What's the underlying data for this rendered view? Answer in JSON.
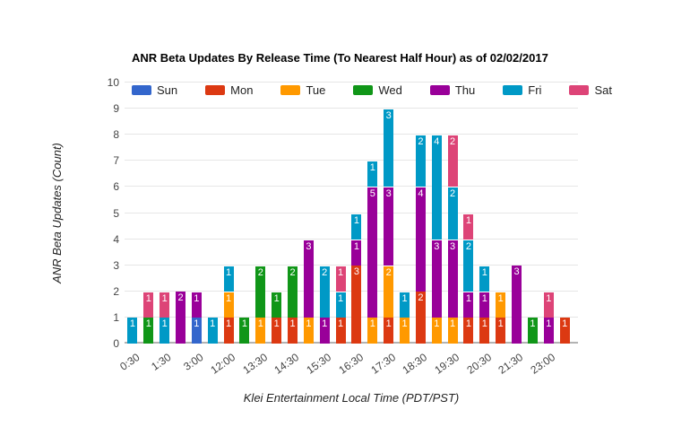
{
  "chart_data": {
    "type": "bar",
    "stacked": true,
    "title": "ANR Beta Updates By Release Time (To Nearest Half Hour) as of 02/02/2017",
    "xlabel": "Klei Entertainment Local Time (PDT/PST)",
    "ylabel": "ANR Beta Updates (Count)",
    "ylim": [
      0,
      10
    ],
    "yticks": [
      0,
      1,
      2,
      3,
      4,
      5,
      6,
      7,
      8,
      9,
      10
    ],
    "grid": true,
    "legend_position": "top",
    "categories": [
      "0:30",
      "",
      "1:30",
      "",
      "3:00",
      "",
      "12:00",
      "",
      "13:30",
      "",
      "14:30",
      "",
      "15:30",
      "",
      "16:30",
      "",
      "17:30",
      "",
      "18:30",
      "",
      "19:30",
      "",
      "20:30",
      "",
      "21:30",
      "",
      "23:00",
      ""
    ],
    "series": [
      {
        "name": "Sun",
        "color": "#3366CC",
        "values": [
          0,
          0,
          0,
          0,
          1,
          0,
          0,
          0,
          0,
          0,
          0,
          0,
          0,
          0,
          0,
          0,
          0,
          0,
          0,
          0,
          0,
          0,
          0,
          0,
          0,
          0,
          0,
          0
        ]
      },
      {
        "name": "Mon",
        "color": "#DC3912",
        "values": [
          0,
          0,
          0,
          0,
          0,
          0,
          1,
          0,
          0,
          1,
          1,
          0,
          0,
          1,
          3,
          0,
          1,
          0,
          2,
          0,
          0,
          1,
          1,
          1,
          0,
          0,
          0,
          1
        ]
      },
      {
        "name": "Tue",
        "color": "#FF9900",
        "values": [
          0,
          0,
          0,
          0,
          0,
          0,
          1,
          0,
          1,
          0,
          0,
          1,
          0,
          0,
          0,
          1,
          2,
          1,
          0,
          1,
          1,
          0,
          0,
          1,
          0,
          0,
          0,
          0
        ]
      },
      {
        "name": "Wed",
        "color": "#109618",
        "values": [
          0,
          1,
          0,
          0,
          0,
          0,
          0,
          1,
          2,
          1,
          2,
          0,
          0,
          0,
          0,
          0,
          0,
          0,
          0,
          0,
          0,
          0,
          0,
          0,
          0,
          1,
          0,
          0
        ]
      },
      {
        "name": "Thu",
        "color": "#990099",
        "values": [
          0,
          0,
          0,
          2,
          1,
          0,
          0,
          0,
          0,
          0,
          0,
          3,
          1,
          0,
          1,
          5,
          3,
          0,
          4,
          3,
          3,
          1,
          1,
          0,
          3,
          0,
          1,
          0
        ]
      },
      {
        "name": "Fri",
        "color": "#0099C6",
        "values": [
          1,
          0,
          1,
          0,
          0,
          1,
          1,
          0,
          0,
          0,
          0,
          0,
          2,
          1,
          1,
          1,
          3,
          1,
          2,
          4,
          2,
          2,
          1,
          0,
          0,
          0,
          0,
          0
        ]
      },
      {
        "name": "Sat",
        "color": "#DD4477",
        "values": [
          0,
          1,
          1,
          0,
          0,
          0,
          0,
          0,
          0,
          0,
          0,
          0,
          0,
          1,
          0,
          0,
          0,
          0,
          0,
          0,
          2,
          1,
          0,
          0,
          0,
          0,
          1,
          0
        ]
      }
    ]
  }
}
